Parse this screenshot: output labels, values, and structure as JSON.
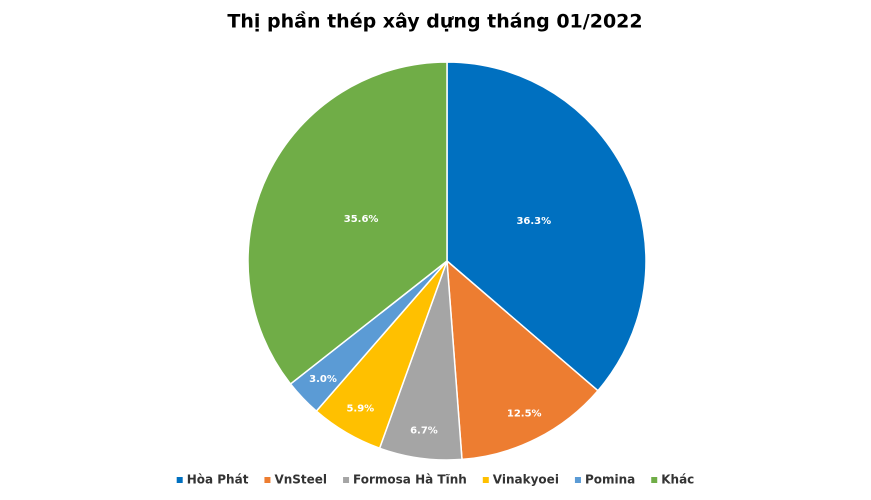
{
  "chart_data": {
    "type": "pie",
    "title": "Thị phần thép xây dựng tháng 01/2022",
    "categories": [
      "Hòa Phát",
      "VnSteel",
      "Formosa Hà Tĩnh",
      "Vinakyoei",
      "Pomina",
      "Khác"
    ],
    "values": [
      36.3,
      12.5,
      6.7,
      5.9,
      3.0,
      35.6
    ],
    "value_labels": [
      "36.3%",
      "12.5%",
      "6.7%",
      "5.9%",
      "3.0%",
      "35.6%"
    ],
    "colors": [
      "#0070c0",
      "#ed7d31",
      "#a5a5a5",
      "#ffc000",
      "#5b9bd5",
      "#70ad47"
    ],
    "legend": "bottom"
  }
}
